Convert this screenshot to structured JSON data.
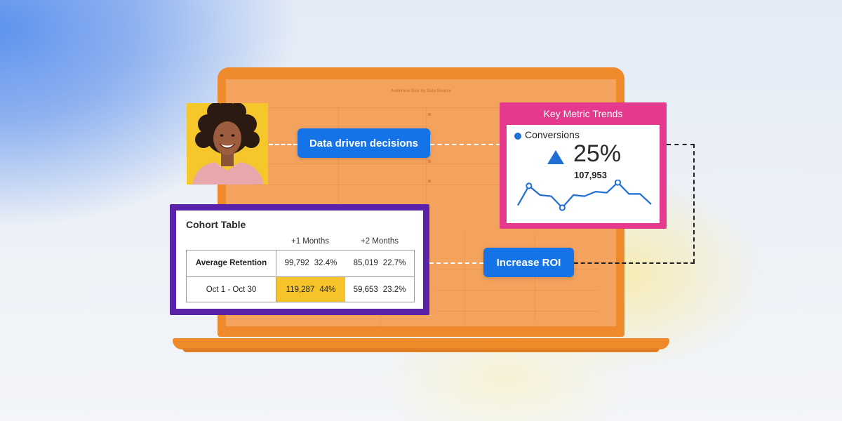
{
  "screen": {
    "title": "Audience Size by Data Source"
  },
  "pills": {
    "data_driven": "Data driven decisions",
    "increase_roi": "Increase ROI"
  },
  "key_metric": {
    "title": "Key Metric Trends",
    "legend": "Conversions",
    "change": "25%",
    "count": "107,953",
    "trend_icon": "up-triangle-icon",
    "accent": "#e4398c",
    "line_color": "#1f6fd6"
  },
  "chart_data": {
    "type": "line",
    "series": [
      {
        "values": [
          5,
          22,
          14,
          13,
          3,
          14,
          13,
          17,
          16,
          25,
          15,
          15,
          6
        ]
      }
    ],
    "markers": [
      1,
      4,
      9
    ],
    "title": "",
    "xlabel": "",
    "ylabel": "",
    "grid": false
  },
  "cohort": {
    "title": "Cohort Table",
    "columns": [
      "+1 Months",
      "+2 Months"
    ],
    "rows": [
      {
        "label": "Average Retention",
        "c1_value": "99,792",
        "c1_pct": "32.4%",
        "c2_value": "85,019",
        "c2_pct": "22.7%"
      },
      {
        "label": "Oct 1 - Oct 30",
        "c1_value": "119,287",
        "c1_pct": "44%",
        "c2_value": "59,653",
        "c2_pct": "23.2%"
      }
    ],
    "border_color": "#5a22a8",
    "highlight_color": "#f6c42a"
  },
  "colors": {
    "laptop": "#ee8a2c",
    "pill": "#1473e6"
  }
}
